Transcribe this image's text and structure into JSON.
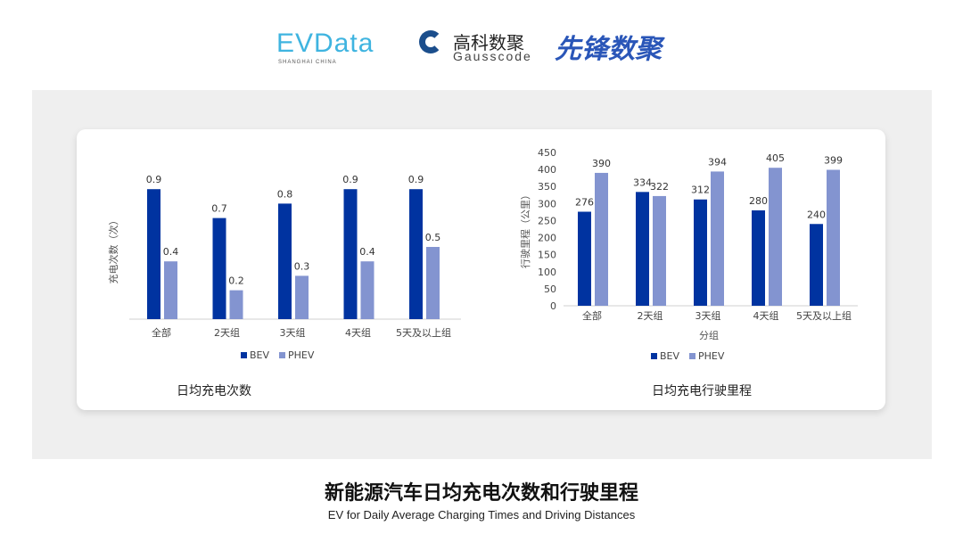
{
  "logos": {
    "evdata": "EVData",
    "evdata_sub": "SHANGHAI CHINA",
    "gauss_cn": "高科数聚",
    "gauss_en": "Gausscode",
    "xianfeng": "先锋数聚"
  },
  "colors": {
    "BEV": "#0033a0",
    "PHEV": "#8394d0"
  },
  "chart_data": [
    {
      "type": "bar",
      "title": "日均充电次数",
      "ylabel": "充电次数（次）",
      "xlabel": "",
      "categories": [
        "全部",
        "2天组",
        "3天组",
        "4天组",
        "5天及以上组"
      ],
      "series": [
        {
          "name": "BEV",
          "values": [
            0.9,
            0.7,
            0.8,
            0.9,
            0.9
          ]
        },
        {
          "name": "PHEV",
          "values": [
            0.4,
            0.2,
            0.3,
            0.4,
            0.5
          ]
        }
      ],
      "ylim": [
        0,
        1
      ],
      "grid": false,
      "legend": "bottom"
    },
    {
      "type": "bar",
      "title": "日均充电行驶里程",
      "ylabel": "行驶里程（公里）",
      "xlabel": "分组",
      "categories": [
        "全部",
        "2天组",
        "3天组",
        "4天组",
        "5天及以上组"
      ],
      "series": [
        {
          "name": "BEV",
          "values": [
            276,
            334,
            312,
            280,
            240
          ]
        },
        {
          "name": "PHEV",
          "values": [
            390,
            322,
            394,
            405,
            399
          ]
        }
      ],
      "ylim": [
        0,
        450
      ],
      "yticks": [
        0,
        50,
        100,
        150,
        200,
        250,
        300,
        350,
        400,
        450
      ],
      "grid": false,
      "legend": "bottom"
    }
  ],
  "footer": {
    "title": "新能源汽车日均充电次数和行驶里程",
    "subtitle": "EV for Daily Average Charging Times and Driving Distances"
  }
}
